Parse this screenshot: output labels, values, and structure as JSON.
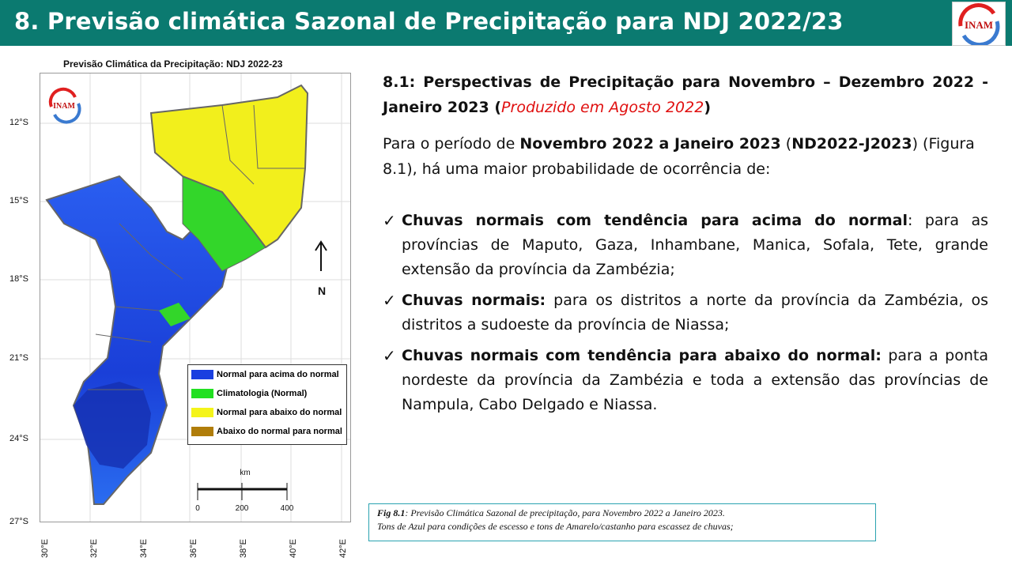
{
  "header": {
    "title": "8. Previsão climática Sazonal de Precipitação para NDJ 2022/23",
    "logo_text": "INAM"
  },
  "map": {
    "title": "Previsão Climática da Precipitação: NDJ 2022-23",
    "logo_text": "INAM",
    "north_label": "N",
    "lat_labels": [
      "12°S",
      "15°S",
      "18°S",
      "21°S",
      "24°S",
      "27°S"
    ],
    "lon_labels": [
      "30°E",
      "32°E",
      "34°E",
      "36°E",
      "38°E",
      "40°E",
      "42°E"
    ],
    "scale": {
      "unit": "km",
      "ticks": [
        "0",
        "200",
        "400"
      ]
    },
    "legend": [
      {
        "label": "Normal para acima do normal",
        "color": "#1a3fe0"
      },
      {
        "label": "Climatologia (Normal)",
        "color": "#22e022"
      },
      {
        "label": "Normal para abaixo do normal",
        "color": "#f4f41a"
      },
      {
        "label": "Abaixo do normal para normal",
        "color": "#b07d0a"
      }
    ]
  },
  "content": {
    "heading_main": "8.1: Perspectivas de Precipitação para Novembro – Dezembro 2022 - Janeiro 2023 (",
    "heading_red": "Produzido em Agosto 2022",
    "heading_close": ")",
    "intro_1": "Para o período de ",
    "intro_bold_1": "Novembro 2022 a Janeiro 2023",
    "intro_2": " (",
    "intro_bold_2": "ND2022-J2023",
    "intro_3": ") (Figura 8.1), há uma maior probabilidade de ocorrência de:",
    "bullets": [
      {
        "bold": "Chuvas normais com tendência para acima do normal",
        "text": ": para as províncias de Maputo, Gaza, Inhambane, Manica, Sofala, Tete, grande extensão da província da Zambézia;"
      },
      {
        "bold": "Chuvas normais:",
        "text": " para os distritos a norte da província da Zambézia, os distritos a sudoeste da província de Niassa;"
      },
      {
        "bold": "Chuvas normais com tendência para abaixo do normal:",
        "text": " para a ponta nordeste da província da Zambézia e toda a extensão das províncias de Nampula, Cabo Delgado e Niassa."
      }
    ],
    "check_symbol": "✓"
  },
  "caption": {
    "label": "Fig 8.1",
    "line1": ": Previsão Climática Sazonal de precipitação, para Novembro 2022 a Janeiro 2023.",
    "line2": "Tons de Azul para condições de escesso e tons de Amarelo/castanho para escassez de chuvas;"
  }
}
